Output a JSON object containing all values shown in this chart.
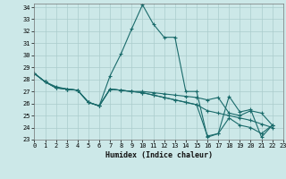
{
  "xlabel": "Humidex (Indice chaleur)",
  "bg_color": "#cce8e8",
  "grid_color": "#aacccc",
  "line_color": "#1a6b6b",
  "xlim": [
    0,
    23
  ],
  "ylim": [
    23,
    34.3
  ],
  "yticks": [
    23,
    24,
    25,
    26,
    27,
    28,
    29,
    30,
    31,
    32,
    33,
    34
  ],
  "xticks": [
    0,
    1,
    2,
    3,
    4,
    5,
    6,
    7,
    8,
    9,
    10,
    11,
    12,
    13,
    14,
    15,
    16,
    17,
    18,
    19,
    20,
    21,
    22,
    23
  ],
  "series": [
    {
      "x": [
        0,
        1,
        2,
        3,
        4,
        5,
        6,
        7,
        8,
        9,
        10,
        11,
        12,
        13,
        14,
        15,
        16,
        17,
        18,
        19,
        20,
        21,
        22
      ],
      "y": [
        28.5,
        27.8,
        27.4,
        27.2,
        27.1,
        26.1,
        25.8,
        28.3,
        30.1,
        32.2,
        34.2,
        32.6,
        31.5,
        31.5,
        27.0,
        27.0,
        23.2,
        23.5,
        26.6,
        25.3,
        25.5,
        23.2,
        24.2
      ]
    },
    {
      "x": [
        0,
        1,
        2,
        3,
        4,
        5,
        6,
        7,
        8,
        9,
        10,
        11,
        12,
        13,
        14,
        15,
        16,
        17,
        18,
        19,
        20,
        21,
        22
      ],
      "y": [
        28.5,
        27.8,
        27.3,
        27.2,
        27.1,
        26.1,
        25.8,
        27.2,
        27.1,
        27.0,
        27.0,
        26.9,
        26.8,
        26.7,
        26.6,
        26.5,
        26.3,
        26.5,
        25.2,
        25.0,
        25.4,
        25.2,
        24.2
      ]
    },
    {
      "x": [
        0,
        1,
        2,
        3,
        4,
        5,
        6,
        7,
        8,
        9,
        10,
        11,
        12,
        13,
        14,
        15,
        16,
        17,
        18,
        19,
        20,
        21,
        22
      ],
      "y": [
        28.5,
        27.8,
        27.3,
        27.2,
        27.1,
        26.1,
        25.8,
        27.2,
        27.1,
        27.0,
        26.9,
        26.7,
        26.5,
        26.3,
        26.1,
        25.9,
        25.4,
        25.2,
        25.0,
        24.8,
        24.6,
        24.3,
        24.0
      ]
    },
    {
      "x": [
        0,
        1,
        2,
        3,
        4,
        5,
        6,
        7,
        8,
        9,
        10,
        11,
        12,
        13,
        14,
        15,
        16,
        17,
        18,
        19,
        20,
        21,
        22
      ],
      "y": [
        28.5,
        27.8,
        27.3,
        27.2,
        27.1,
        26.1,
        25.8,
        27.2,
        27.1,
        27.0,
        26.9,
        26.7,
        26.5,
        26.3,
        26.1,
        25.9,
        23.3,
        23.5,
        24.8,
        24.2,
        24.0,
        23.5,
        24.2
      ]
    }
  ]
}
